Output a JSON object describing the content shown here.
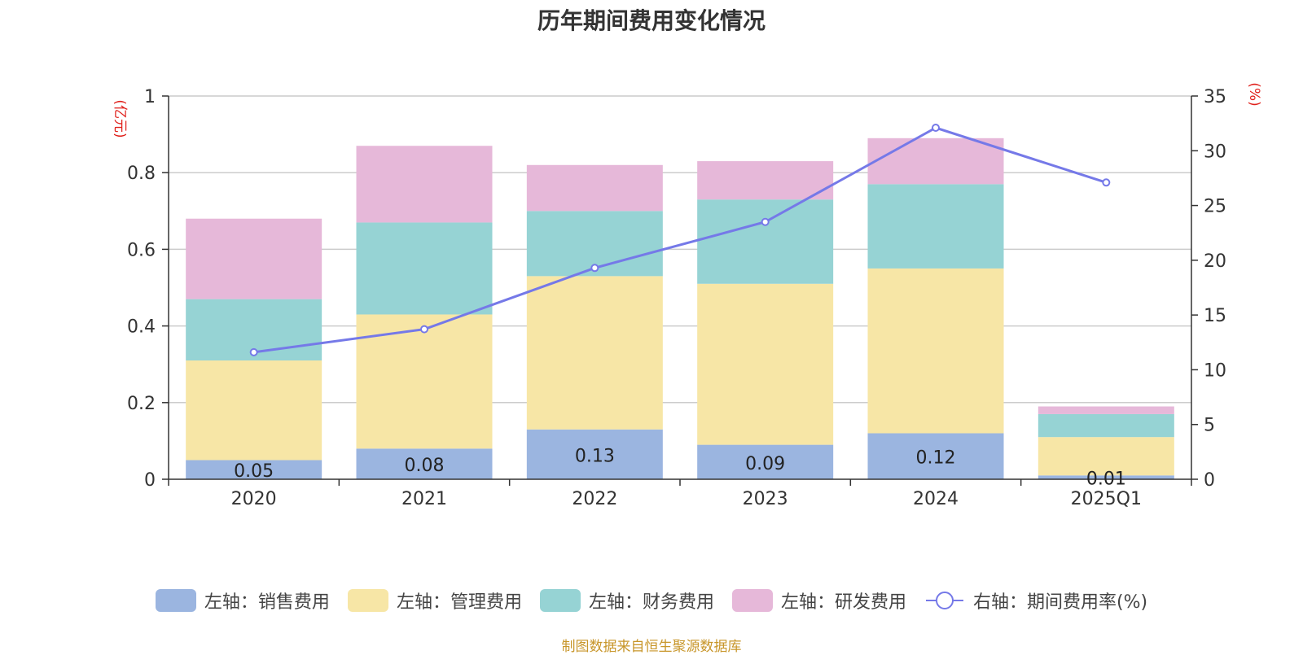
{
  "chart_data": {
    "type": "bar",
    "title": "历年期间费用变化情况",
    "categories": [
      "2020",
      "2021",
      "2022",
      "2023",
      "2024",
      "2025Q1"
    ],
    "left_axis": {
      "unit_label": "(亿元)",
      "ylim": [
        0,
        1
      ],
      "ticks": [
        "0",
        "0.2",
        "0.4",
        "0.6",
        "0.8",
        "1"
      ],
      "tick_values": [
        0,
        0.2,
        0.4,
        0.6,
        0.8,
        1
      ]
    },
    "right_axis": {
      "unit_label": "(%)",
      "ylim": [
        0,
        35
      ],
      "ticks": [
        "0",
        "5",
        "10",
        "15",
        "20",
        "25",
        "30",
        "35"
      ],
      "tick_values": [
        0,
        5,
        10,
        15,
        20,
        25,
        30,
        35
      ]
    },
    "series": [
      {
        "name": "左轴：销售费用",
        "axis": "left",
        "stacked": true,
        "color": "#9bb5e0",
        "values": [
          0.05,
          0.08,
          0.13,
          0.09,
          0.12,
          0.01
        ],
        "labels": [
          "0.05",
          "0.08",
          "0.13",
          "0.09",
          "0.12",
          "0.01"
        ]
      },
      {
        "name": "左轴：管理费用",
        "axis": "left",
        "stacked": true,
        "color": "#f7e6a6",
        "values": [
          0.26,
          0.35,
          0.4,
          0.42,
          0.43,
          0.1
        ]
      },
      {
        "name": "左轴：财务费用",
        "axis": "left",
        "stacked": true,
        "color": "#96d3d4",
        "values": [
          0.16,
          0.24,
          0.17,
          0.22,
          0.22,
          0.06
        ]
      },
      {
        "name": "左轴：研发费用",
        "axis": "left",
        "stacked": true,
        "color": "#e6b8d9",
        "values": [
          0.21,
          0.2,
          0.12,
          0.1,
          0.12,
          0.02
        ]
      },
      {
        "name": "右轴：期间费用率(%)",
        "axis": "right",
        "type": "line",
        "color": "#7579e8",
        "values": [
          11.6,
          13.7,
          19.3,
          23.5,
          32.1,
          27.1
        ]
      }
    ],
    "legend_position": "bottom"
  },
  "source_note": "制图数据来自恒生聚源数据库"
}
